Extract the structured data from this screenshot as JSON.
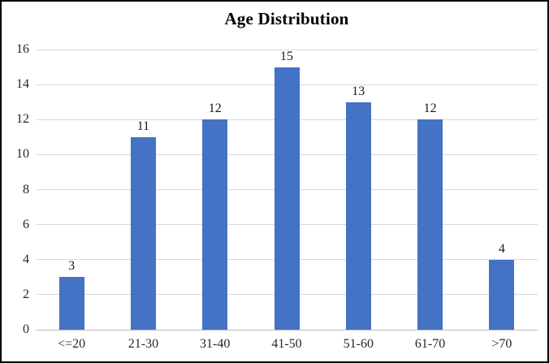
{
  "chart_data": {
    "type": "bar",
    "title": "Age Distribution",
    "categories": [
      "<=20",
      "21-30",
      "31-40",
      "41-50",
      "51-60",
      "61-70",
      ">70"
    ],
    "values": [
      3,
      11,
      12,
      15,
      13,
      12,
      4
    ],
    "data_labels": [
      "3",
      "11",
      "12",
      "15",
      "13",
      "12",
      "4"
    ],
    "xlabel": "",
    "ylabel": "",
    "ylim": [
      0,
      16
    ],
    "ytick_step": 2,
    "ytick_labels": [
      "0",
      "2",
      "4",
      "6",
      "8",
      "10",
      "12",
      "14",
      "16"
    ],
    "grid": true,
    "legend_position": "none",
    "colors": {
      "bar_fill": "#4472C4",
      "gridline": "#d9d9d9",
      "axis_text": "#262626",
      "data_label_text": "#1a1a1a",
      "title_text": "#000000",
      "frame_border": "#000000",
      "background": "#ffffff"
    }
  }
}
